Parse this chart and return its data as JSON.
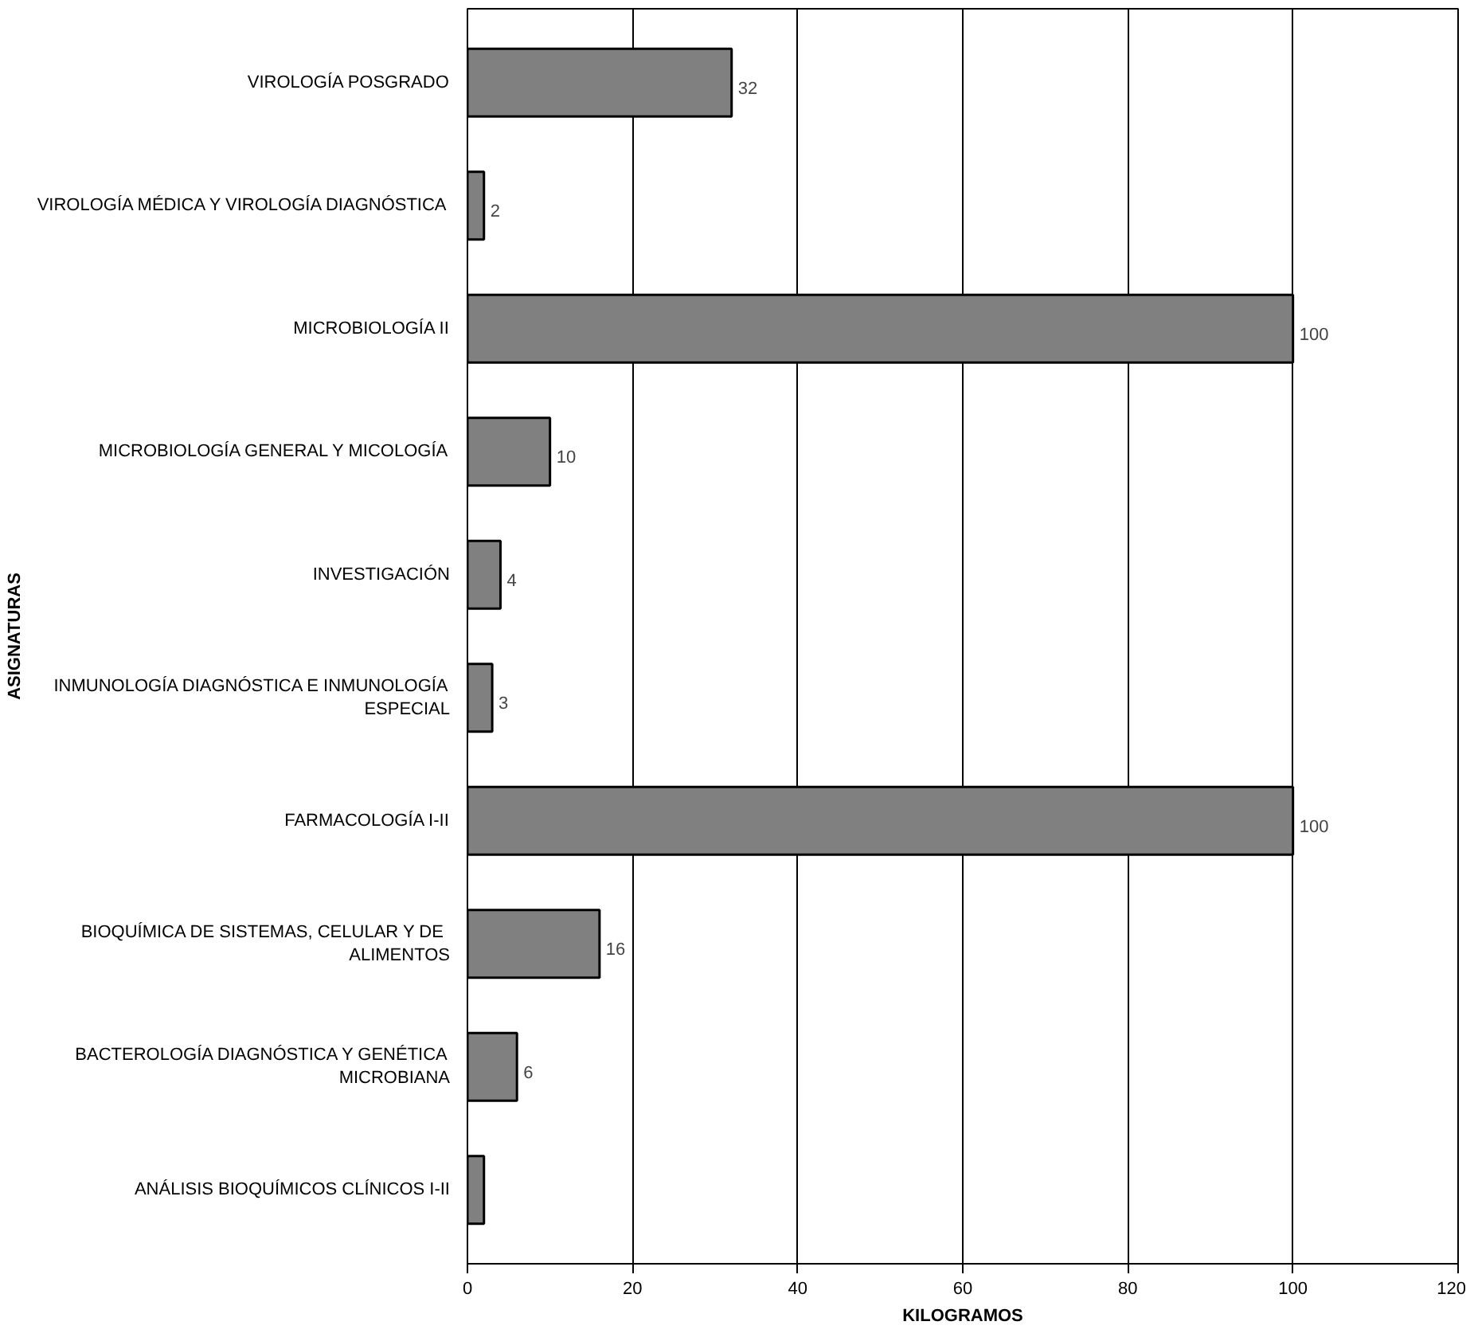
{
  "chart_data": {
    "type": "bar",
    "orientation": "horizontal",
    "xlabel": "KILOGRAMOS",
    "ylabel": "ASIGNATURAS",
    "categories": [
      "VIROLOGÍA POSGRADO",
      "VIROLOGÍA MÉDICA Y VIROLOGÍA DIAGNÓSTICA",
      "MICROBIOLOGÍA II",
      "MICROBIOLOGÍA GENERAL Y MICOLOGÍA",
      "INVESTIGACIÓN",
      "INMUNOLOGÍA DIAGNÓSTICA E INMUNOLOGÍA ESPECIAL",
      "FARMACOLOGÍA I-II",
      "BIOQUÍMICA DE SISTEMAS, CELULAR  Y DE ALIMENTOS",
      "BACTEROLOGÍA DIAGNÓSTICA Y GENÉTICA MICROBIANA",
      "ANÁLISIS BIOQUÍMICOS CLÍNICOS I-II"
    ],
    "values": [
      32,
      2,
      100,
      10,
      4,
      3,
      100,
      16,
      6,
      2
    ],
    "value_labels": [
      "32",
      "2",
      "100",
      "10",
      "4",
      "3",
      "100",
      "16",
      "6",
      null
    ],
    "color": "#808080",
    "xlim": [
      0,
      120
    ],
    "xticks": [
      0,
      20,
      40,
      60,
      80,
      100,
      120
    ],
    "grid": "x"
  }
}
